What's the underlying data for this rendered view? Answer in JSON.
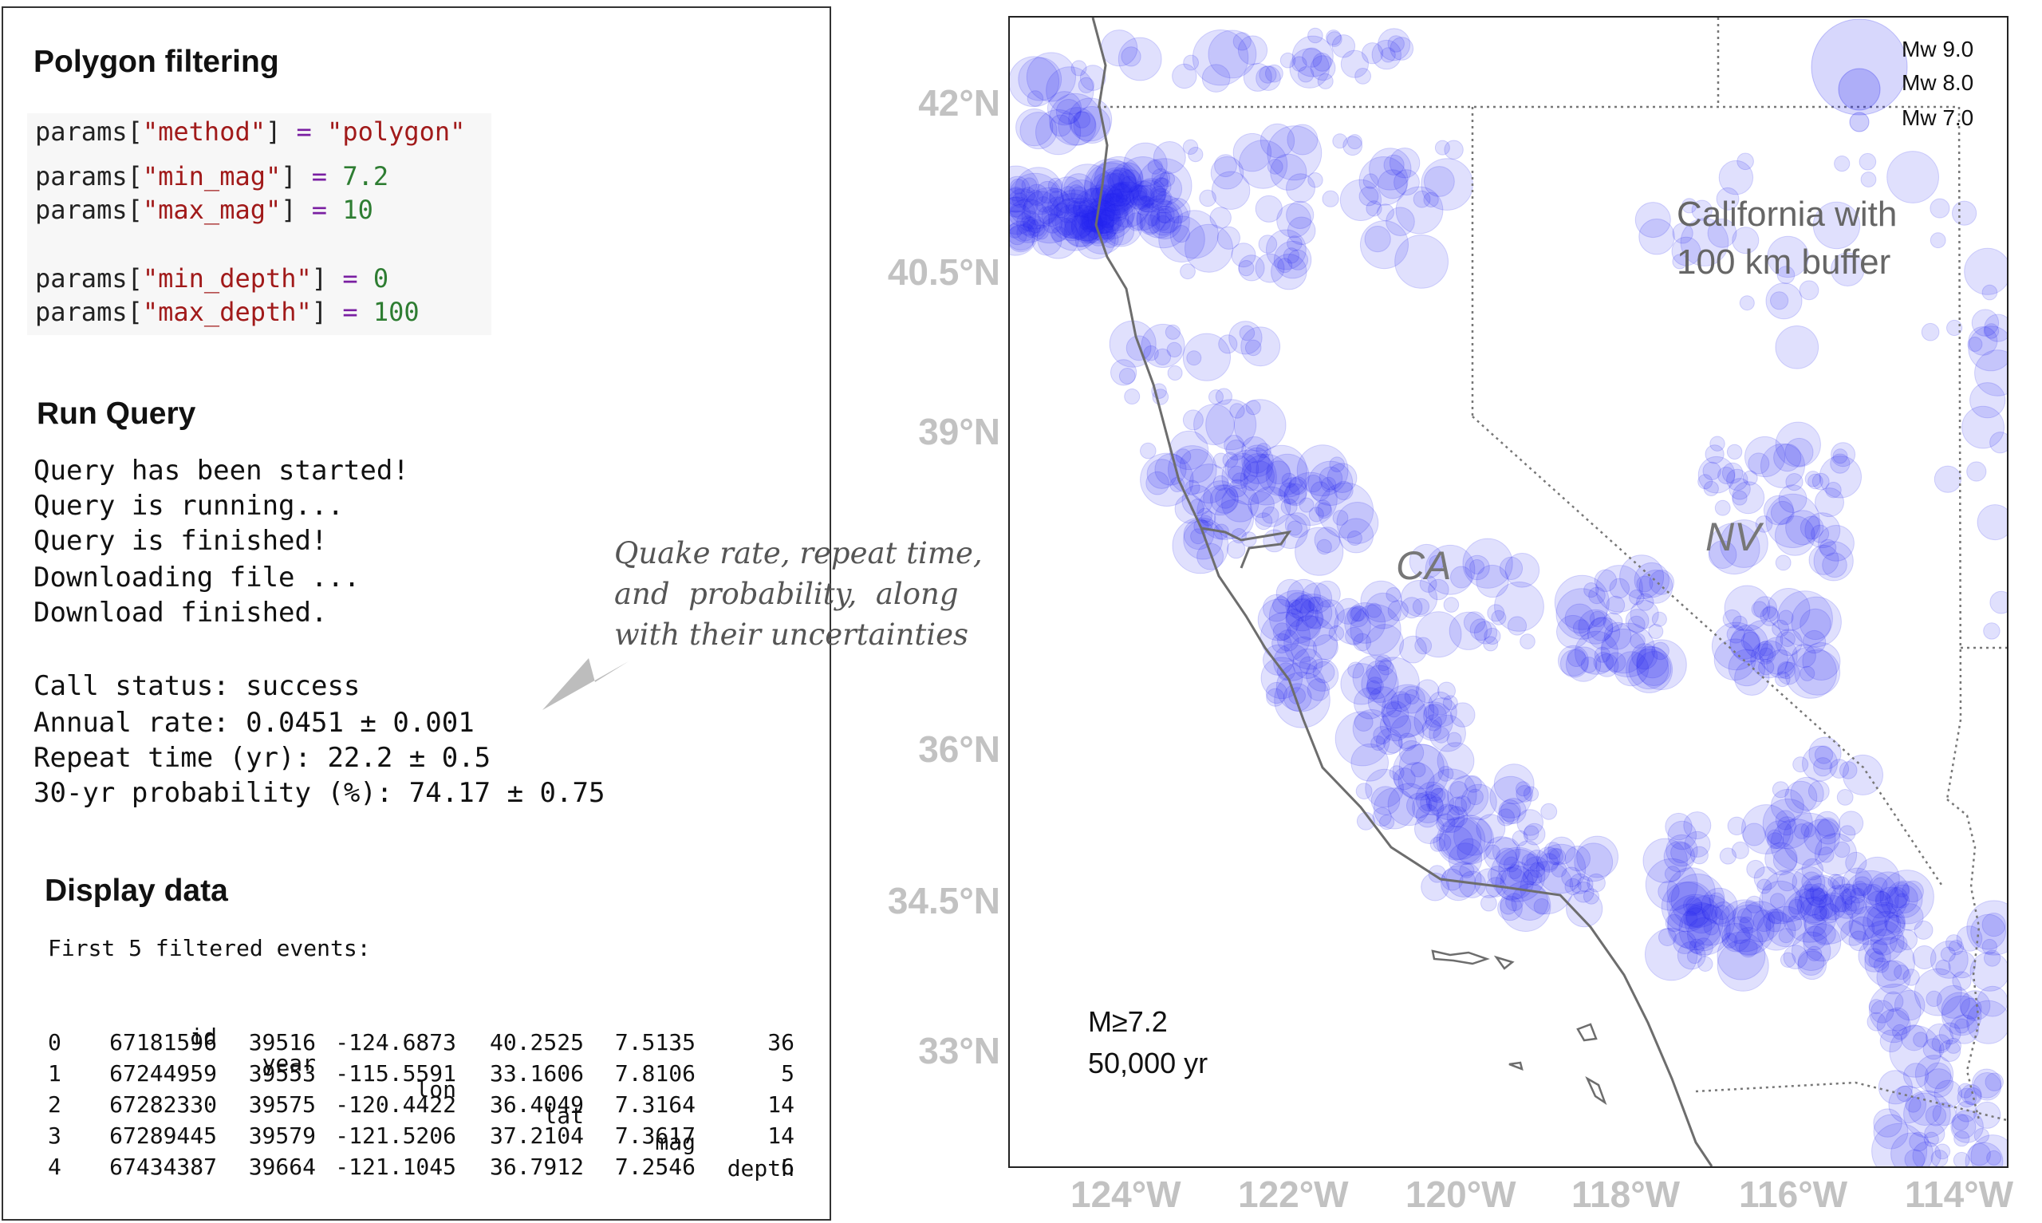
{
  "panel": {
    "polygon_title": "Polygon filtering",
    "params": [
      {
        "key": "\"method\"",
        "value": "\"polygon\"",
        "kind": "str"
      },
      {
        "key": "\"min_mag\"",
        "value": "7.2",
        "kind": "num"
      },
      {
        "key": "\"max_mag\"",
        "value": "10",
        "kind": "num"
      },
      {
        "key": "\"min_depth\"",
        "value": "0",
        "kind": "num"
      },
      {
        "key": "\"max_depth\"",
        "value": "100",
        "kind": "num"
      }
    ],
    "run_title": "Run Query",
    "run_lines": [
      "Query has been started!",
      "Query is running...",
      "Query is finished!",
      "Downloading file ...",
      "Download finished."
    ],
    "status_lines": [
      "Call status: success",
      "Annual rate: 0.0451 ± 0.001",
      "Repeat time (yr): 22.2 ± 0.5",
      "30-yr probability (%): 74.17 ± 0.75"
    ],
    "display_title": "Display data",
    "first_events_label": "First 5 filtered events:",
    "table": {
      "headers": [
        "id",
        "year",
        "lon",
        "lat",
        "mag",
        "depth"
      ],
      "rows": [
        [
          "0",
          "67181596",
          "39516",
          "-124.6873",
          "40.2525",
          "7.5135",
          "36"
        ],
        [
          "1",
          "67244959",
          "39553",
          "-115.5591",
          "33.1606",
          "7.8106",
          "5"
        ],
        [
          "2",
          "67282330",
          "39575",
          "-120.4422",
          "36.4049",
          "7.3164",
          "14"
        ],
        [
          "3",
          "67289445",
          "39579",
          "-121.5206",
          "37.2104",
          "7.3617",
          "14"
        ],
        [
          "4",
          "67434387",
          "39664",
          "-121.1045",
          "36.7912",
          "7.2546",
          "6"
        ]
      ]
    }
  },
  "annotation": "Quake rate, repeat time,\nand  probability,  along\nwith their uncertainties",
  "map": {
    "title_line1": "California with",
    "title_line2": "100 km buffer",
    "label_ca": "CA",
    "label_nv": "NV",
    "legend": [
      "Mw 9.0",
      "Mw 8.0",
      "Mw 7.0"
    ],
    "stats_line1": "M≥7.2",
    "stats_line2": "50,000 yr",
    "lat_labels": [
      "42°N",
      "40.5°N",
      "39°N",
      "36°N",
      "34.5°N",
      "33°N"
    ],
    "lon_labels": [
      "124°W",
      "122°W",
      "120°W",
      "118°W",
      "116°W",
      "114°W"
    ],
    "colors": {
      "quake": "#2222ee",
      "coast": "#6d6d6d",
      "border": "#777777",
      "axis_label": "#c2c2c2"
    }
  }
}
